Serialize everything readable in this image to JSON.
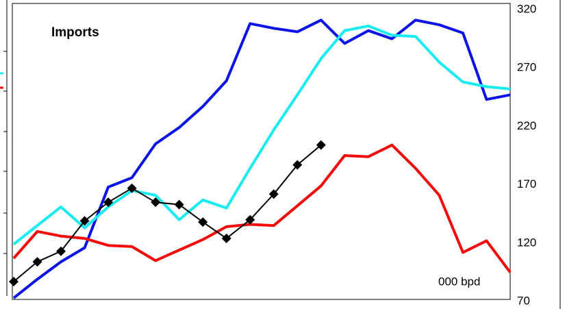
{
  "chart_data": {
    "type": "line",
    "annotations": [
      "Imports",
      "000 bpd"
    ],
    "categories": [
      null,
      null,
      null,
      null,
      null,
      null,
      null,
      null,
      null,
      null,
      null,
      null,
      null,
      null,
      null,
      null,
      null,
      null,
      null,
      null,
      null,
      null
    ],
    "series": [
      {
        "color": "#0a14e6",
        "values": [
          73,
          89,
          104,
          116,
          168,
          176,
          205,
          219,
          237,
          259,
          308,
          304,
          301,
          311,
          291,
          302,
          295,
          311,
          307,
          300,
          243,
          247
        ]
      },
      {
        "color": "#19ecf0",
        "values": [
          119,
          135,
          151,
          133,
          151,
          165,
          161,
          140,
          157,
          150,
          184,
          217,
          247,
          278,
          302,
          306,
          298,
          297,
          275,
          258,
          254,
          252
        ]
      },
      {
        "color": "#f50a0a",
        "values": [
          107,
          130,
          126,
          124,
          118,
          117,
          105,
          114,
          123,
          134,
          136,
          135,
          152,
          169,
          195,
          194,
          204,
          184,
          161,
          112,
          122,
          95
        ]
      },
      {
        "color": "#000000",
        "marker": "diamond",
        "values": [
          87,
          104,
          113,
          139,
          155,
          167,
          155,
          153,
          138,
          124,
          140,
          162,
          187,
          204,
          null,
          null,
          null,
          null,
          null,
          null,
          null,
          null
        ]
      }
    ],
    "ylim": [
      70,
      320
    ],
    "yticks": [
      70,
      120,
      170,
      220,
      270,
      320
    ],
    "yaxis_side": "right",
    "grid": false
  }
}
